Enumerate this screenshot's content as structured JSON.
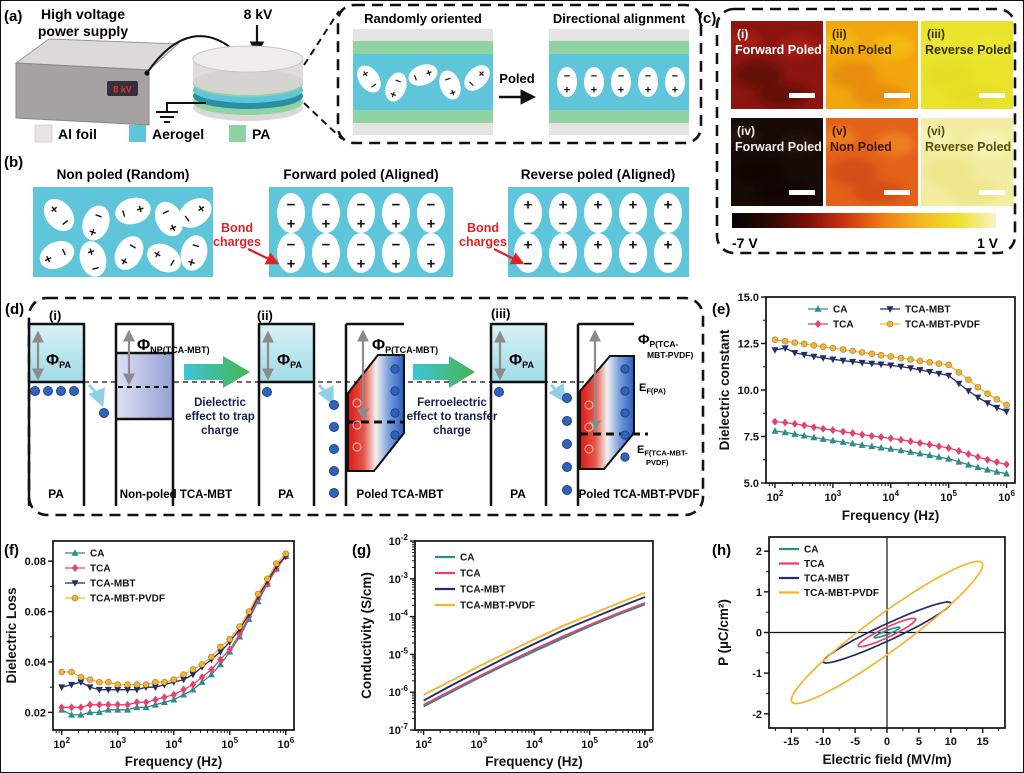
{
  "figure": {
    "background": "#ffffff",
    "border_color": "#111111"
  },
  "panels": {
    "a": {
      "label": "(a)",
      "supply_line1": "High voltage",
      "supply_line2": "power supply",
      "display": "8 kV",
      "voltage": "8 kV",
      "legend": [
        {
          "label": "Al foil",
          "color": "#e8e4e4"
        },
        {
          "label": "Aerogel",
          "color": "#5fc5da"
        },
        {
          "label": "PA",
          "color": "#8fd3a3"
        }
      ],
      "inset_left_title": "Randomly oriented",
      "inset_right_title": "Directional alignment",
      "poled_label": "Poled"
    },
    "b": {
      "label": "(b)",
      "titles": [
        "Non poled (Random)",
        "Forward poled (Aligned)",
        "Reverse poled (Aligned)"
      ],
      "bond_line1": "Bond",
      "bond_line2": "charges",
      "plus": "+",
      "minus": "−",
      "box_color": "#5fc5da",
      "accent_red": "#e02128"
    },
    "c": {
      "label": "(c)",
      "scale_left": "-7 V",
      "scale_right": "1 V",
      "colorbar": [
        "#050302",
        "#2b0906",
        "#7a100a",
        "#cc3510",
        "#ef7d14",
        "#f3b723",
        "#efe12c",
        "#f8f3c8"
      ],
      "tiles": [
        {
          "num": "(i)",
          "title": "Forward Poled",
          "base": "#8c1510",
          "blob": "#4a0a06",
          "blob2": "#b42015",
          "text_color": "#ffffff"
        },
        {
          "num": "(ii)",
          "title": "Non Poled",
          "base": "#f2a50d",
          "blob": "#e07f08",
          "blob2": "#f8c816",
          "text_color": "#3a2800"
        },
        {
          "num": "(iii)",
          "title": "Reverse Poled",
          "base": "#e9e32b",
          "blob": "#e3da20",
          "blob2": "#efe83a",
          "text_color": "#33300a"
        },
        {
          "num": "(iv)",
          "title": "Forward Poled",
          "base": "#170b05",
          "blob": "#0a0503",
          "blob2": "#2e160a",
          "text_color": "#efefef"
        },
        {
          "num": "(v)",
          "title": "Non Poled",
          "base": "#e4611a",
          "blob": "#cc3f12",
          "blob2": "#f49026",
          "text_color": "#3c1600"
        },
        {
          "num": "(vi)",
          "title": "Reverse Poled",
          "base": "#f2eda0",
          "blob": "#eae27f",
          "blob2": "#faf6c2",
          "text_color": "#565009"
        }
      ]
    },
    "d": {
      "label": "(d)",
      "sec1": "(i)",
      "sec2": "(ii)",
      "sec3": "(iii)",
      "phi": "Φ",
      "e_sym": "E",
      "sub_pa": "PA",
      "sub_np": "NP(TCA-MBT)",
      "sub_p": "P(TCA-MBT)",
      "sub_p_pvdf_1": "P(TCA-",
      "sub_p_pvdf_2": "MBT-PVDF)",
      "sub_ef_pa": "F(PA)",
      "sub_ef_pvdf_1": "F(TCA-MBT-",
      "sub_ef_pvdf_2": "PVDF)",
      "pa_bottom": "PA",
      "nonpoled_label": "Non-poled TCA-MBT",
      "poled_label": "Poled TCA-MBT",
      "poled_pvdf_label": "Poled TCA-MBT-PVDF",
      "arrow1": [
        "Dielectric",
        "effect to trap",
        "charge"
      ],
      "arrow2": [
        "Ferroelectric",
        "effect to transfer",
        "charge"
      ]
    }
  },
  "chart_data": [
    {
      "id": "e",
      "panel_label": "(e)",
      "type": "line",
      "xscale": "log",
      "yscale": "linear",
      "xlabel": "Frequency (Hz)",
      "ylabel": "Dielectric constant",
      "xlim": [
        70,
        1400000
      ],
      "ylim": [
        5.0,
        15.0
      ],
      "yticks": [
        5.0,
        7.5,
        10.0,
        12.5,
        15.0
      ],
      "ytick_format": "dec1",
      "x": [
        100,
        150,
        220,
        320,
        470,
        680,
        1000,
        1500,
        2200,
        3200,
        4700,
        6800,
        10000,
        15000,
        22000,
        32000,
        47000,
        68000,
        100000,
        150000,
        220000,
        320000,
        470000,
        680000,
        1000000
      ],
      "series": [
        {
          "name": "CA",
          "color": "#2e8b8f",
          "marker": "triangle-up",
          "values": [
            7.8,
            7.72,
            7.63,
            7.54,
            7.45,
            7.36,
            7.28,
            7.2,
            7.12,
            7.04,
            6.97,
            6.9,
            6.83,
            6.75,
            6.67,
            6.58,
            6.49,
            6.4,
            6.3,
            6.14,
            5.98,
            5.84,
            5.71,
            5.6,
            5.5
          ]
        },
        {
          "name": "TCA",
          "color": "#e4436e",
          "marker": "diamond",
          "values": [
            8.3,
            8.25,
            8.18,
            8.1,
            8.0,
            7.92,
            7.84,
            7.76,
            7.68,
            7.6,
            7.53,
            7.47,
            7.4,
            7.32,
            7.24,
            7.15,
            7.06,
            6.97,
            6.88,
            6.72,
            6.55,
            6.4,
            6.25,
            6.12,
            6.0
          ]
        },
        {
          "name": "TCA-MBT",
          "color": "#232e63",
          "marker": "triangle-down",
          "values": [
            12.15,
            12.25,
            12.0,
            11.9,
            11.8,
            11.72,
            11.65,
            11.58,
            11.52,
            11.47,
            11.42,
            11.38,
            11.33,
            11.26,
            11.18,
            11.08,
            10.98,
            10.88,
            10.78,
            10.35,
            9.95,
            9.6,
            9.3,
            9.05,
            8.85
          ]
        },
        {
          "name": "TCA-MBT-PVDF",
          "color": "#f5b42e",
          "marker": "circle",
          "values": [
            12.7,
            12.62,
            12.55,
            12.48,
            12.4,
            12.33,
            12.25,
            12.18,
            12.1,
            12.02,
            11.95,
            11.87,
            11.8,
            11.72,
            11.64,
            11.56,
            11.49,
            11.42,
            11.35,
            10.95,
            10.55,
            10.15,
            9.8,
            9.5,
            9.2
          ]
        }
      ]
    },
    {
      "id": "f",
      "panel_label": "(f)",
      "type": "line",
      "xscale": "log",
      "yscale": "linear",
      "xlabel": "Frequency (Hz)",
      "ylabel": "Dielectric Loss",
      "xlim": [
        70,
        1400000
      ],
      "ylim": [
        0.013,
        0.088
      ],
      "yticks": [
        0.02,
        0.04,
        0.06,
        0.08
      ],
      "ytick_format": "dec2",
      "x": [
        100,
        150,
        220,
        320,
        470,
        680,
        1000,
        1500,
        2200,
        3200,
        4700,
        6800,
        10000,
        15000,
        22000,
        32000,
        47000,
        68000,
        100000,
        150000,
        220000,
        320000,
        470000,
        680000,
        1000000
      ],
      "series": [
        {
          "name": "CA",
          "color": "#2e8b8f",
          "marker": "triangle-up",
          "values": [
            0.021,
            0.019,
            0.019,
            0.02,
            0.02,
            0.021,
            0.021,
            0.021,
            0.022,
            0.022,
            0.023,
            0.024,
            0.025,
            0.027,
            0.029,
            0.032,
            0.035,
            0.039,
            0.044,
            0.05,
            0.057,
            0.064,
            0.071,
            0.077,
            0.082
          ]
        },
        {
          "name": "TCA",
          "color": "#e4436e",
          "marker": "diamond",
          "values": [
            0.022,
            0.022,
            0.022,
            0.023,
            0.023,
            0.023,
            0.023,
            0.023,
            0.024,
            0.024,
            0.025,
            0.026,
            0.027,
            0.029,
            0.031,
            0.034,
            0.037,
            0.041,
            0.045,
            0.051,
            0.058,
            0.065,
            0.071,
            0.077,
            0.082
          ]
        },
        {
          "name": "TCA-MBT",
          "color": "#232e63",
          "marker": "triangle-down",
          "values": [
            0.03,
            0.031,
            0.032,
            0.03,
            0.029,
            0.029,
            0.029,
            0.029,
            0.029,
            0.03,
            0.03,
            0.031,
            0.032,
            0.033,
            0.035,
            0.038,
            0.041,
            0.044,
            0.048,
            0.053,
            0.059,
            0.066,
            0.072,
            0.078,
            0.082
          ]
        },
        {
          "name": "TCA-MBT-PVDF",
          "color": "#f5b42e",
          "marker": "circle",
          "values": [
            0.036,
            0.036,
            0.034,
            0.033,
            0.032,
            0.032,
            0.031,
            0.031,
            0.031,
            0.031,
            0.032,
            0.032,
            0.033,
            0.035,
            0.037,
            0.039,
            0.042,
            0.046,
            0.049,
            0.054,
            0.06,
            0.067,
            0.073,
            0.079,
            0.083
          ]
        }
      ]
    },
    {
      "id": "g",
      "panel_label": "(g)",
      "type": "line",
      "xscale": "log",
      "yscale": "log",
      "xlabel": "Frequency (Hz)",
      "ylabel": "Conductivity (S/cm)",
      "xlim": [
        70,
        1400000
      ],
      "ylim": [
        1e-07,
        0.01
      ],
      "x": [
        100,
        316,
        1000,
        3162,
        10000,
        31623,
        100000,
        316228,
        1000000
      ],
      "series": [
        {
          "name": "CA",
          "color": "#2e8b8f",
          "marker": null,
          "values": [
            4.2e-07,
            1e-06,
            2.4e-06,
            5.5e-06,
            1.2e-05,
            2.6e-05,
            5.5e-05,
            0.00011,
            0.00021
          ]
        },
        {
          "name": "TCA",
          "color": "#e4436e",
          "marker": null,
          "values": [
            4.6e-07,
            1.1e-06,
            2.6e-06,
            6e-06,
            1.35e-05,
            2.9e-05,
            6e-05,
            0.00012,
            0.00023
          ]
        },
        {
          "name": "TCA-MBT",
          "color": "#232e63",
          "marker": null,
          "values": [
            6e-07,
            1.5e-06,
            3.6e-06,
            8.5e-06,
            1.9e-05,
            4.2e-05,
            8.5e-05,
            0.00017,
            0.00033
          ]
        },
        {
          "name": "TCA-MBT-PVDF",
          "color": "#f5b42e",
          "marker": null,
          "values": [
            8.5e-07,
            2e-06,
            4.8e-06,
            1.1e-05,
            2.5e-05,
            5.5e-05,
            0.00011,
            0.00022,
            0.00043
          ]
        }
      ]
    },
    {
      "id": "h",
      "panel_label": "(h)",
      "type": "hysteresis",
      "xscale": "linear",
      "yscale": "linear",
      "xlabel": "Electric field (MV/m)",
      "ylabel": "P (µC/cm²)",
      "xlim": [
        -18.5,
        18.5
      ],
      "ylim": [
        -2.35,
        2.35
      ],
      "xticks": [
        -15,
        -10,
        -5,
        0,
        5,
        10,
        15
      ],
      "yticks": [
        -2,
        -1,
        0,
        1,
        2
      ],
      "ytick_format": "int",
      "series": [
        {
          "name": "CA",
          "color": "#2e8b8f",
          "e_max": 2.0,
          "p_max": 0.13,
          "p_r": 0.05
        },
        {
          "name": "TCA",
          "color": "#e4436e",
          "e_max": 4.5,
          "p_max": 0.35,
          "p_r": 0.13
        },
        {
          "name": "TCA-MBT",
          "color": "#232e63",
          "e_max": 10.0,
          "p_max": 0.75,
          "p_r": 0.22
        },
        {
          "name": "TCA-MBT-PVDF",
          "color": "#f5b42e",
          "e_max": 15.0,
          "p_max": 1.75,
          "p_r": 0.55
        }
      ]
    }
  ]
}
